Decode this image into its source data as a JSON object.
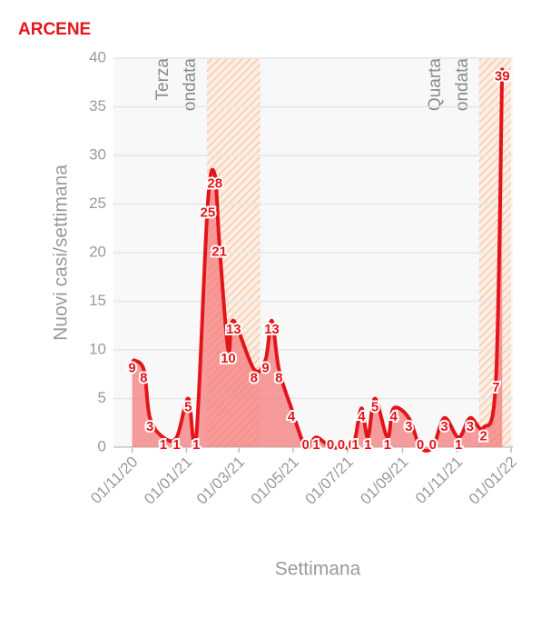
{
  "chart_data": {
    "type": "line",
    "title": "ARCENE",
    "xlabel": "Settimana",
    "ylabel": "Nuovi casi/settimana",
    "x": [
      "2020-11-01",
      "2020-11-14",
      "2020-11-21",
      "2020-12-06",
      "2020-12-21",
      "2021-01-03",
      "2021-01-12",
      "2021-01-25",
      "2021-02-02",
      "2021-02-07",
      "2021-02-17",
      "2021-02-23",
      "2021-03-18",
      "2021-03-31",
      "2021-04-07",
      "2021-04-15",
      "2021-04-29",
      "2021-05-15",
      "2021-05-27",
      "2021-06-12",
      "2021-06-24",
      "2021-07-06",
      "2021-07-10",
      "2021-07-17",
      "2021-07-24",
      "2021-08-01",
      "2021-08-15",
      "2021-08-22",
      "2021-09-08",
      "2021-09-21",
      "2021-10-05",
      "2021-10-18",
      "2021-11-03",
      "2021-11-16",
      "2021-12-01",
      "2021-12-15",
      "2021-12-22"
    ],
    "values": [
      9,
      8,
      3,
      1,
      1,
      5,
      1,
      25,
      28,
      21,
      10,
      13,
      8,
      9,
      13,
      8,
      4,
      0,
      1,
      0,
      0,
      0,
      1,
      4,
      1,
      5,
      1,
      4,
      3,
      0,
      0,
      3,
      1,
      3,
      2,
      7,
      39
    ],
    "line_color": "#e3151b",
    "area_color": "#f47c7c",
    "title_color": "#e3151b",
    "xlim": [
      "2020-10-11",
      "2022-01-03"
    ],
    "ylim": [
      0,
      40
    ],
    "yticks": [
      0,
      5,
      10,
      15,
      20,
      25,
      30,
      35,
      40
    ],
    "xticks": [
      {
        "value": "2020-11-01",
        "label": "01/11/20"
      },
      {
        "value": "2021-01-01",
        "label": "01/01/21"
      },
      {
        "value": "2021-03-01",
        "label": "01/03/21"
      },
      {
        "value": "2021-05-01",
        "label": "01/05/21"
      },
      {
        "value": "2021-07-01",
        "label": "01/07/21"
      },
      {
        "value": "2021-09-01",
        "label": "01/09/21"
      },
      {
        "value": "2021-11-01",
        "label": "01/11/21"
      },
      {
        "value": "2022-01-01",
        "label": "01/01/22"
      }
    ],
    "grid": true,
    "bands": [
      {
        "start": "2021-01-24",
        "end": "2021-03-25",
        "label": [
          "Terza",
          "ondata"
        ]
      },
      {
        "start": "2021-11-26",
        "end": "2022-01-01",
        "label": [
          "Quarta",
          "ondata"
        ]
      }
    ]
  }
}
